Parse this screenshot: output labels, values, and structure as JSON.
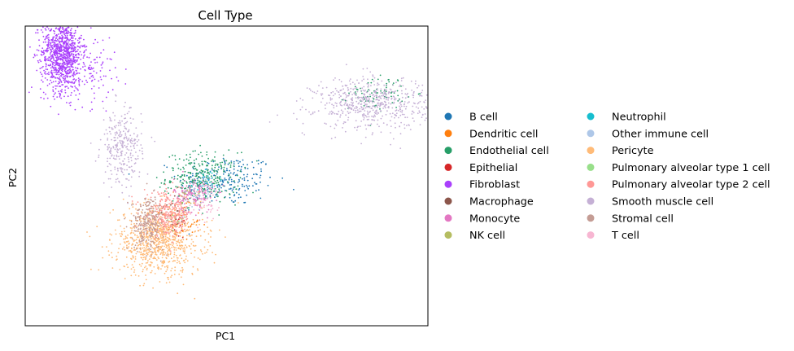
{
  "chart_data": {
    "type": "scatter",
    "title": "Cell Type",
    "xlabel": "PC1",
    "ylabel": "PC2",
    "xlim": [
      -10,
      10
    ],
    "ylim": [
      -6,
      8
    ],
    "grid": false,
    "ticks_shown": false,
    "legend": {
      "placement": "right",
      "columns": 2
    },
    "series": [
      {
        "name": "B cell",
        "color": "#1f77b4",
        "clusters": [
          {
            "center": [
              0.0,
              0.8
            ],
            "spread": [
              1.2,
              0.6
            ],
            "n": 220
          }
        ]
      },
      {
        "name": "Dendritic cell",
        "color": "#ff7f0e",
        "clusters": [
          {
            "center": [
              -2.3,
              -1.2
            ],
            "spread": [
              0.5,
              0.4
            ],
            "n": 40
          }
        ]
      },
      {
        "name": "Endothelial cell",
        "color": "#279e68",
        "clusters": [
          {
            "center": [
              -1.2,
              0.9
            ],
            "spread": [
              0.9,
              0.6
            ],
            "n": 300
          },
          {
            "center": [
              7.5,
              4.9
            ],
            "spread": [
              0.7,
              0.4
            ],
            "n": 80
          }
        ]
      },
      {
        "name": "Epithelial",
        "color": "#d62728",
        "clusters": [
          {
            "center": [
              -2.5,
              -1.3
            ],
            "spread": [
              0.3,
              0.3
            ],
            "n": 20
          }
        ]
      },
      {
        "name": "Fibroblast",
        "color": "#aa40fc",
        "clusters": [
          {
            "center": [
              -8.2,
              6.8
            ],
            "spread": [
              0.5,
              0.9
            ],
            "n": 900
          },
          {
            "center": [
              -7.3,
              6.0
            ],
            "spread": [
              0.9,
              0.8
            ],
            "n": 200
          }
        ]
      },
      {
        "name": "Macrophage",
        "color": "#8c564b",
        "clusters": [
          {
            "center": [
              -2.6,
              -0.8
            ],
            "spread": [
              0.3,
              0.3
            ],
            "n": 30
          }
        ]
      },
      {
        "name": "Monocyte",
        "color": "#e377c2",
        "clusters": [
          {
            "center": [
              -1.6,
              0.1
            ],
            "spread": [
              0.5,
              0.4
            ],
            "n": 150
          }
        ]
      },
      {
        "name": "NK cell",
        "color": "#b5bd61",
        "clusters": [
          {
            "center": [
              -1.8,
              0.0
            ],
            "spread": [
              0.3,
              0.3
            ],
            "n": 15
          }
        ]
      },
      {
        "name": "Neutrophil",
        "color": "#17becf",
        "clusters": [
          {
            "center": [
              -0.8,
              0.8
            ],
            "spread": [
              0.4,
              0.3
            ],
            "n": 20
          }
        ]
      },
      {
        "name": "Other immune cell",
        "color": "#aec7e8",
        "clusters": [
          {
            "center": [
              -1.4,
              0.3
            ],
            "spread": [
              0.4,
              0.3
            ],
            "n": 30
          }
        ]
      },
      {
        "name": "Pericyte",
        "color": "#ffbb78",
        "clusters": [
          {
            "center": [
              -3.4,
              -2.0
            ],
            "spread": [
              1.1,
              0.8
            ],
            "n": 900
          }
        ]
      },
      {
        "name": "Pulmonary alveolar type 1 cell",
        "color": "#98df8a",
        "clusters": [
          {
            "center": [
              -2.5,
              -1.0
            ],
            "spread": [
              0.3,
              0.3
            ],
            "n": 10
          }
        ]
      },
      {
        "name": "Pulmonary alveolar type 2 cell",
        "color": "#ff9896",
        "clusters": [
          {
            "center": [
              -2.9,
              -0.8
            ],
            "spread": [
              0.6,
              0.5
            ],
            "n": 300
          }
        ]
      },
      {
        "name": "Smooth muscle cell",
        "color": "#c5b0d5",
        "clusters": [
          {
            "center": [
              7.2,
              4.4
            ],
            "spread": [
              1.4,
              0.6
            ],
            "n": 600
          },
          {
            "center": [
              -5.2,
              2.3
            ],
            "spread": [
              0.5,
              0.9
            ],
            "n": 280
          }
        ]
      },
      {
        "name": "Stromal cell",
        "color": "#c49c94",
        "clusters": [
          {
            "center": [
              -3.9,
              -1.2
            ],
            "spread": [
              0.4,
              0.6
            ],
            "n": 250
          }
        ]
      },
      {
        "name": "T cell",
        "color": "#f7b6d2",
        "clusters": [
          {
            "center": [
              -1.0,
              -0.3
            ],
            "spread": [
              0.5,
              0.4
            ],
            "n": 40
          }
        ]
      }
    ]
  }
}
